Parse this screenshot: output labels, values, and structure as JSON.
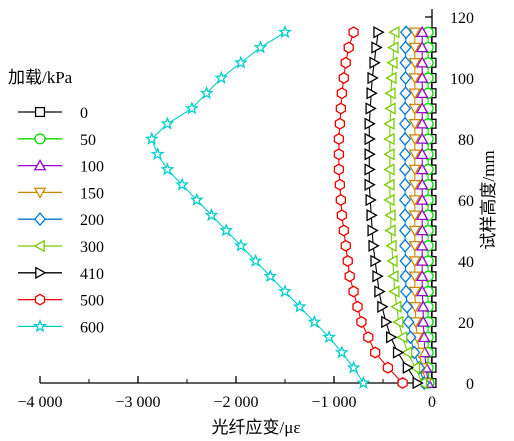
{
  "chart_data": {
    "type": "line",
    "x_axis": {
      "label": "光纤应变/με",
      "range": [
        -4000,
        0
      ],
      "ticks": [
        -4000,
        -3000,
        -2000,
        -1000,
        0
      ],
      "tick_labels": [
        "−4 000",
        "−3 000",
        "−2 000",
        "−1 000",
        "0"
      ],
      "position": "bottom"
    },
    "y_axis": {
      "label": "试样高度/mm",
      "range": [
        0,
        120
      ],
      "ticks": [
        0,
        20,
        40,
        60,
        80,
        100,
        120
      ],
      "tick_labels": [
        "0",
        "20",
        "40",
        "60",
        "80",
        "100",
        "120"
      ],
      "position": "right"
    },
    "grid": false,
    "legend": {
      "title": "加载/kPa",
      "placement": "left"
    },
    "y_values": [
      0,
      5,
      10,
      15,
      20,
      25,
      30,
      35,
      40,
      45,
      50,
      55,
      60,
      65,
      70,
      75,
      80,
      85,
      90,
      95,
      100,
      105,
      110,
      115
    ],
    "series": [
      {
        "name": "0",
        "color": "#000000",
        "marker": "square",
        "values": [
          -5,
          -5,
          -5,
          -5,
          -5,
          -5,
          -5,
          -5,
          -5,
          -5,
          -5,
          -5,
          -5,
          -5,
          -5,
          -5,
          -5,
          -5,
          -5,
          -5,
          -5,
          -5,
          -5,
          -5
        ]
      },
      {
        "name": "50",
        "color": "#00dd00",
        "marker": "circle",
        "values": [
          -30,
          -40,
          -40,
          -40,
          -40,
          -40,
          -40,
          -40,
          -40,
          -40,
          -40,
          -40,
          -40,
          -40,
          -40,
          -40,
          -40,
          -40,
          -40,
          -40,
          -40,
          -40,
          -40,
          -40
        ]
      },
      {
        "name": "100",
        "color": "#9900cc",
        "marker": "triangle-up",
        "values": [
          -40,
          -60,
          -75,
          -80,
          -90,
          -90,
          -100,
          -100,
          -100,
          -100,
          -100,
          -100,
          -100,
          -100,
          -100,
          -100,
          -100,
          -100,
          -100,
          -100,
          -100,
          -100,
          -100,
          -100
        ]
      },
      {
        "name": "150",
        "color": "#cc8800",
        "marker": "triangle-down",
        "values": [
          -60,
          -100,
          -130,
          -150,
          -165,
          -170,
          -175,
          -175,
          -175,
          -175,
          -175,
          -175,
          -175,
          -175,
          -175,
          -175,
          -175,
          -175,
          -175,
          -175,
          -175,
          -175,
          -175,
          -175
        ]
      },
      {
        "name": "200",
        "color": "#0077dd",
        "marker": "diamond",
        "values": [
          -80,
          -130,
          -180,
          -220,
          -240,
          -255,
          -265,
          -270,
          -270,
          -275,
          -275,
          -275,
          -275,
          -275,
          -275,
          -275,
          -275,
          -275,
          -275,
          -270,
          -270,
          -270,
          -270,
          -265
        ]
      },
      {
        "name": "300",
        "color": "#77cc00",
        "marker": "triangle-left",
        "values": [
          -100,
          -170,
          -250,
          -300,
          -340,
          -360,
          -380,
          -390,
          -400,
          -410,
          -420,
          -420,
          -430,
          -430,
          -430,
          -430,
          -430,
          -430,
          -420,
          -420,
          -410,
          -400,
          -390,
          -380
        ]
      },
      {
        "name": "410",
        "color": "#000000",
        "marker": "triangle-right",
        "values": [
          -150,
          -250,
          -350,
          -420,
          -470,
          -510,
          -540,
          -560,
          -580,
          -600,
          -610,
          -620,
          -630,
          -640,
          -640,
          -640,
          -640,
          -640,
          -630,
          -620,
          -610,
          -590,
          -570,
          -550
        ]
      },
      {
        "name": "500",
        "color": "#ee0000",
        "marker": "hexagon",
        "values": [
          -300,
          -450,
          -580,
          -650,
          -720,
          -760,
          -800,
          -840,
          -860,
          -880,
          -900,
          -920,
          -930,
          -940,
          -950,
          -950,
          -950,
          -940,
          -930,
          -920,
          -900,
          -880,
          -850,
          -800
        ]
      },
      {
        "name": "600",
        "color": "#00cccc",
        "marker": "star",
        "values": [
          -700,
          -800,
          -920,
          -1050,
          -1200,
          -1350,
          -1500,
          -1650,
          -1800,
          -1950,
          -2100,
          -2250,
          -2400,
          -2550,
          -2700,
          -2800,
          -2860,
          -2700,
          -2450,
          -2300,
          -2150,
          -1950,
          -1750,
          -1500
        ]
      }
    ]
  }
}
